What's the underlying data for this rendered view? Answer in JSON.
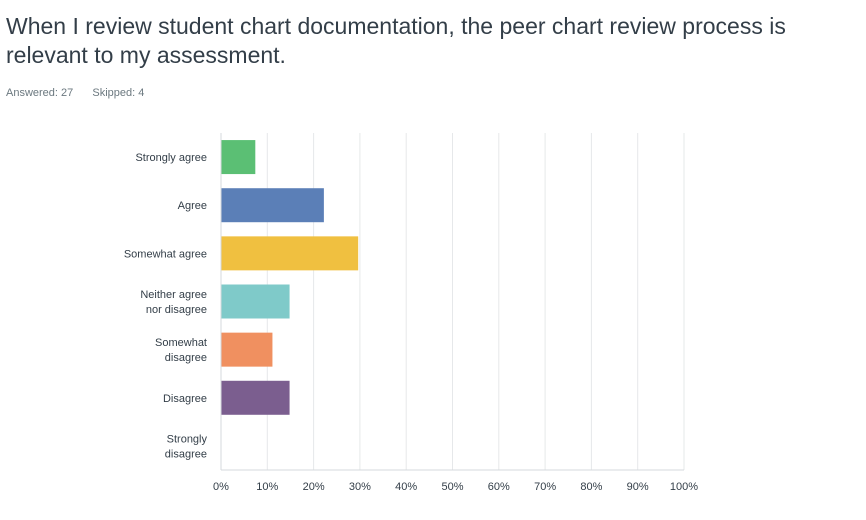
{
  "question": {
    "title": "When I review student chart documentation, the peer chart review process is relevant to my assessment."
  },
  "stats": {
    "answered_label": "Answered:",
    "answered": "27",
    "skipped_label": "Skipped:",
    "skipped": "4"
  },
  "chart_data": {
    "type": "bar",
    "orientation": "horizontal",
    "categories": [
      [
        "Strongly agree"
      ],
      [
        "Agree"
      ],
      [
        "Somewhat agree"
      ],
      [
        "Neither agree",
        "nor disagree"
      ],
      [
        "Somewhat",
        "disagree"
      ],
      [
        "Disagree"
      ],
      [
        "Strongly",
        "disagree"
      ]
    ],
    "values": [
      7.41,
      22.22,
      29.63,
      14.81,
      11.11,
      14.81,
      0
    ],
    "colors": [
      "#5bbf74",
      "#5b7fb7",
      "#f0c040",
      "#7fcac9",
      "#f09060",
      "#7b5e8f",
      "#9aa0a6"
    ],
    "xlim": [
      0,
      100
    ],
    "ticks": [
      0,
      10,
      20,
      30,
      40,
      50,
      60,
      70,
      80,
      90,
      100
    ],
    "tick_suffix": "%",
    "grid": true,
    "gridline_color": "#e6e8ea"
  }
}
